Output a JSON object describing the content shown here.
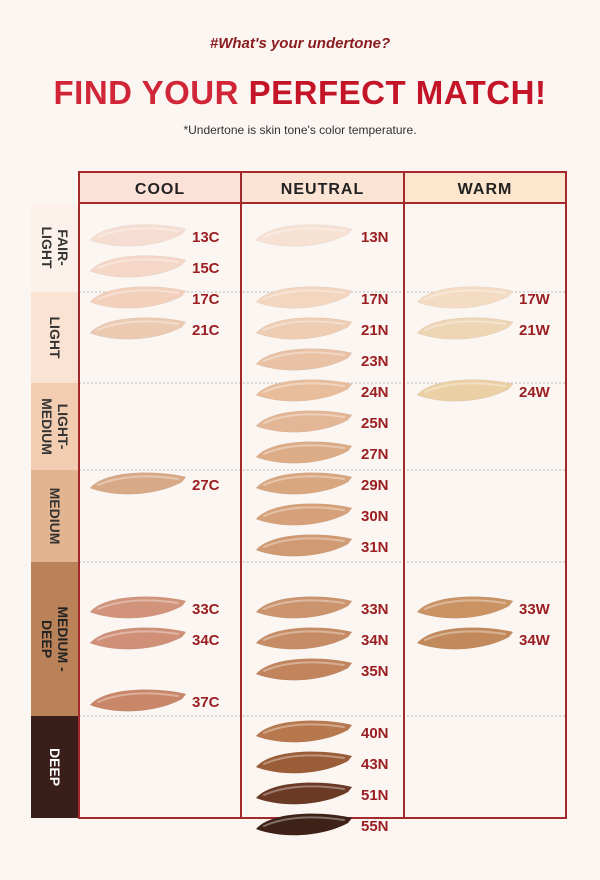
{
  "header": {
    "hashtag": "#What's your undertone?",
    "title_part1": "FIND YOUR ",
    "title_part2": "PERFECT MATCH!",
    "subtitle": "*Undertone is skin tone's color temperature."
  },
  "columns": [
    {
      "label": "COOL",
      "bg": "#fbe1d6"
    },
    {
      "label": "NEUTRAL",
      "bg": "#fbe4d3"
    },
    {
      "label": "WARM",
      "bg": "#fde6cd"
    }
  ],
  "rows": [
    {
      "lines": [
        "FAIR-",
        "LIGHT"
      ],
      "bg": "#fbf1ea",
      "color": "#333333"
    },
    {
      "lines": [
        "LIGHT"
      ],
      "bg": "#fbe3d3",
      "color": "#333333"
    },
    {
      "lines": [
        "LIGHT-",
        "MEDIUM"
      ],
      "bg": "#f2cdb1",
      "color": "#333333"
    },
    {
      "lines": [
        "MEDIUM"
      ],
      "bg": "#e3b490",
      "color": "#333333"
    },
    {
      "lines": [
        "MEDIUM -",
        "DEEP"
      ],
      "bg": "#b98258",
      "color": "#222222"
    },
    {
      "lines": [
        "DEEP"
      ],
      "bg": "#3a1e1a",
      "color": "#ffffff"
    }
  ],
  "shades": [
    {
      "name": "13C",
      "col": 0,
      "slot": 0,
      "color": "#f6ddd1"
    },
    {
      "name": "15C",
      "col": 0,
      "slot": 1,
      "color": "#f4d7c7"
    },
    {
      "name": "17C",
      "col": 0,
      "slot": 2,
      "color": "#f2d0bc"
    },
    {
      "name": "21C",
      "col": 0,
      "slot": 3,
      "color": "#eccab2"
    },
    {
      "name": "27C",
      "col": 0,
      "slot": 8,
      "color": "#d8a987"
    },
    {
      "name": "33C",
      "col": 0,
      "slot": 12,
      "color": "#d1937a"
    },
    {
      "name": "34C",
      "col": 0,
      "slot": 13,
      "color": "#cf9077"
    },
    {
      "name": "37C",
      "col": 0,
      "slot": 15,
      "color": "#c98668"
    },
    {
      "name": "13N",
      "col": 1,
      "slot": 0,
      "color": "#f6e1d3"
    },
    {
      "name": "17N",
      "col": 1,
      "slot": 2,
      "color": "#f3d6c0"
    },
    {
      "name": "21N",
      "col": 1,
      "slot": 3,
      "color": "#eecdb3"
    },
    {
      "name": "23N",
      "col": 1,
      "slot": 4,
      "color": "#e9c2a5"
    },
    {
      "name": "24N",
      "col": 1,
      "slot": 5,
      "color": "#e8bd9c"
    },
    {
      "name": "25N",
      "col": 1,
      "slot": 6,
      "color": "#e3b695"
    },
    {
      "name": "27N",
      "col": 1,
      "slot": 7,
      "color": "#dcac87"
    },
    {
      "name": "29N",
      "col": 1,
      "slot": 8,
      "color": "#d8a67f"
    },
    {
      "name": "30N",
      "col": 1,
      "slot": 9,
      "color": "#d6a17a"
    },
    {
      "name": "31N",
      "col": 1,
      "slot": 10,
      "color": "#d09a72"
    },
    {
      "name": "33N",
      "col": 1,
      "slot": 12,
      "color": "#cb946d"
    },
    {
      "name": "34N",
      "col": 1,
      "slot": 13,
      "color": "#c68c65"
    },
    {
      "name": "35N",
      "col": 1,
      "slot": 14,
      "color": "#c1845c"
    },
    {
      "name": "40N",
      "col": 1,
      "slot": 16,
      "color": "#b8784d"
    },
    {
      "name": "43N",
      "col": 1,
      "slot": 17,
      "color": "#9b5d38"
    },
    {
      "name": "51N",
      "col": 1,
      "slot": 18,
      "color": "#6a3a24"
    },
    {
      "name": "55N",
      "col": 1,
      "slot": 19,
      "color": "#3e2218"
    },
    {
      "name": "17W",
      "col": 2,
      "slot": 2,
      "color": "#f3dcc3"
    },
    {
      "name": "21W",
      "col": 2,
      "slot": 3,
      "color": "#eed5b4"
    },
    {
      "name": "24W",
      "col": 2,
      "slot": 5,
      "color": "#ebcfa5"
    },
    {
      "name": "33W",
      "col": 2,
      "slot": 12,
      "color": "#c99363"
    },
    {
      "name": "34W",
      "col": 2,
      "slot": 13,
      "color": "#c28a5c"
    }
  ],
  "colors": {
    "grid": "#a3292b",
    "label": "#9a1f22",
    "dots": "#b9b9b9"
  }
}
